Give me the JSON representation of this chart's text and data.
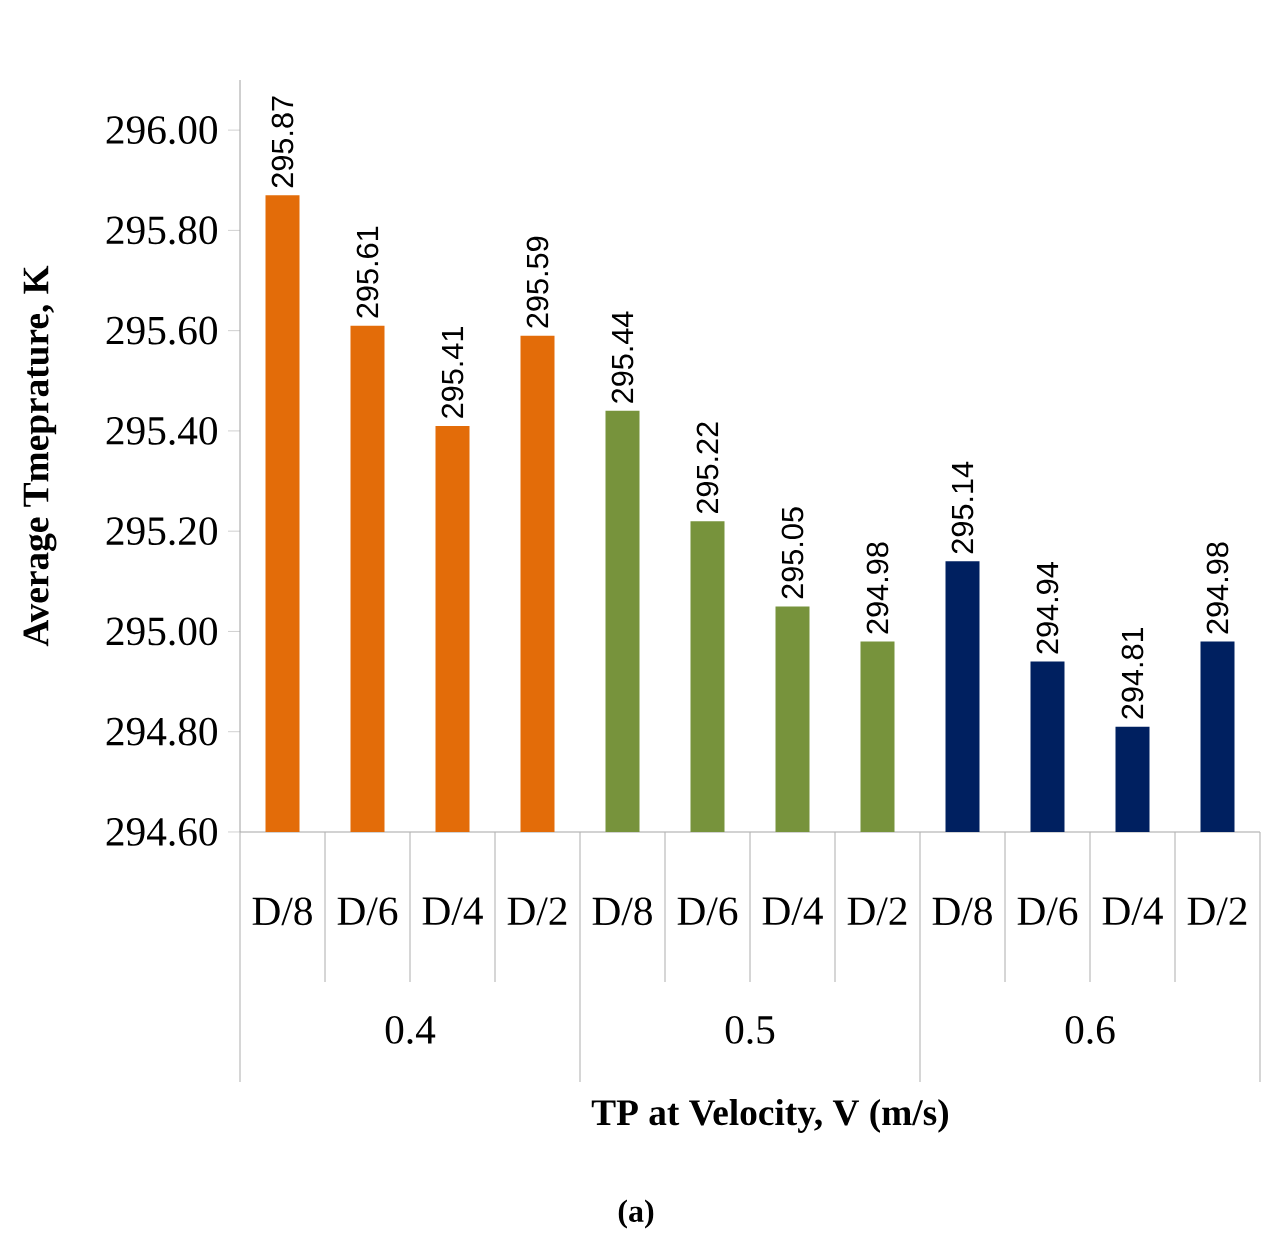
{
  "chart_data": {
    "type": "bar",
    "xlabel": "TP  at Velocity, V (m/s)",
    "ylabel": "Average  Tmeprature,  K",
    "categories": [
      "D/8",
      "D/6",
      "D/4",
      "D/2",
      "D/8",
      "D/6",
      "D/4",
      "D/2",
      "D/8",
      "D/6",
      "D/4",
      "D/2"
    ],
    "values": [
      295.87,
      295.61,
      295.41,
      295.59,
      295.44,
      295.22,
      295.05,
      294.98,
      295.14,
      294.94,
      294.81,
      294.98
    ],
    "value_labels": [
      "295.87",
      "295.61",
      "295.41",
      "295.59",
      "295.44",
      "295.22",
      "295.05",
      "294.98",
      "295.14",
      "294.94",
      "294.81",
      "294.98"
    ],
    "colors": [
      "#e36c09",
      "#e36c09",
      "#e36c09",
      "#e36c09",
      "#77933c",
      "#77933c",
      "#77933c",
      "#77933c",
      "#002060",
      "#002060",
      "#002060",
      "#002060"
    ],
    "ylim": [
      294.6,
      296.1
    ],
    "yticks": [
      {
        "value": 294.6,
        "label": "294.60"
      },
      {
        "value": 294.8,
        "label": "294.80"
      },
      {
        "value": 295.0,
        "label": "295.00"
      },
      {
        "value": 295.2,
        "label": "295.20"
      },
      {
        "value": 295.4,
        "label": "295.40"
      },
      {
        "value": 295.6,
        "label": "295.60"
      },
      {
        "value": 295.8,
        "label": "295.80"
      },
      {
        "value": 296.0,
        "label": "296.00"
      }
    ],
    "grid": false,
    "annotations": [
      "0.4",
      "0.5",
      "0.6",
      "(a)"
    ]
  }
}
